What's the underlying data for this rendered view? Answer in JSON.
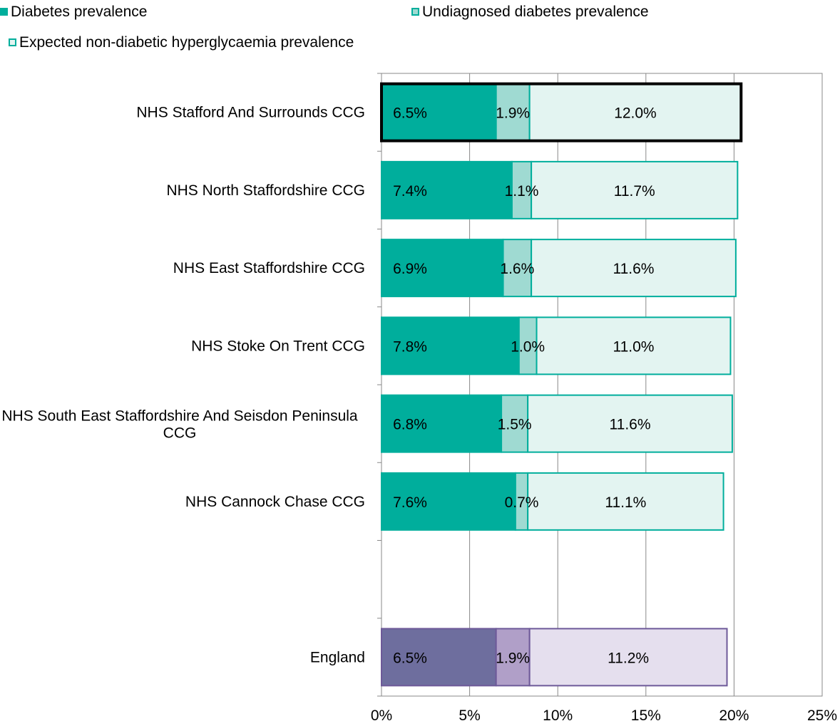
{
  "colors": {
    "diabetes": "#00ae9c",
    "undiagnosed": "#9fdad2",
    "expected": "#e3f4f1",
    "series_border": "#00ae9c",
    "england_diabetes": "#6e6e9e",
    "england_undiagnosed": "#b09fc8",
    "england_expected": "#e5dfee",
    "england_border": "#6e5a99",
    "highlight_border": "#000000",
    "grid": "#888888"
  },
  "legend": {
    "diabetes": "Diabetes prevalence",
    "undiagnosed": "Undiagnosed diabetes prevalence",
    "expected": "Expected non-diabetic hyperglycaemia prevalence"
  },
  "chart_data": {
    "type": "bar",
    "orientation": "horizontal",
    "stacked": true,
    "categories": [
      "NHS Stafford And Surrounds CCG",
      "NHS North Staffordshire CCG",
      "NHS East Staffordshire CCG",
      "NHS Stoke On Trent CCG",
      "NHS South East Staffordshire And Seisdon Peninsula CCG",
      "NHS Cannock Chase CCG",
      "",
      "England"
    ],
    "highlighted_category": "NHS Stafford And Surrounds CCG",
    "series": [
      {
        "name": "Diabetes prevalence",
        "values": [
          6.5,
          7.4,
          6.9,
          7.8,
          6.8,
          7.6,
          null,
          6.5
        ],
        "labels": [
          "6.5%",
          "7.4%",
          "6.9%",
          "7.8%",
          "6.8%",
          "7.6%",
          "",
          "6.5%"
        ]
      },
      {
        "name": "Undiagnosed diabetes prevalence",
        "values": [
          1.9,
          1.1,
          1.6,
          1.0,
          1.5,
          0.7,
          null,
          1.9
        ],
        "labels": [
          "1.9%",
          "1.1%",
          "1.6%",
          "1.0%",
          "1.5%",
          "0.7%",
          "",
          "1.9%"
        ]
      },
      {
        "name": "Expected non-diabetic hyperglycaemia prevalence",
        "values": [
          12.0,
          11.7,
          11.6,
          11.0,
          11.6,
          11.1,
          null,
          11.2
        ],
        "labels": [
          "12.0%",
          "11.7%",
          "11.6%",
          "11.0%",
          "11.6%",
          "11.1%",
          "",
          "11.2%"
        ]
      }
    ],
    "xlim": [
      0,
      25
    ],
    "xticks": [
      0,
      5,
      10,
      15,
      20,
      25
    ],
    "xtick_labels": [
      "0%",
      "5%",
      "10%",
      "15%",
      "20%",
      "25%"
    ],
    "grid": "vertical",
    "legend_position": "top"
  }
}
